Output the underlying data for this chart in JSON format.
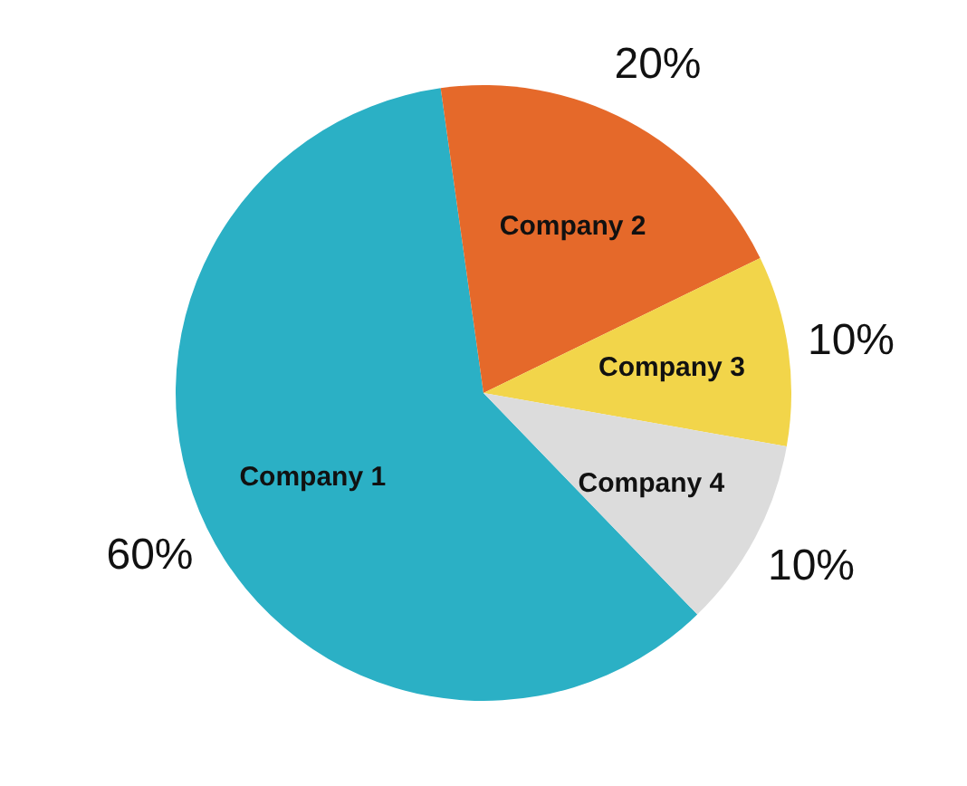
{
  "chart_data": {
    "type": "pie",
    "categories": [
      "Company 1",
      "Company 2",
      "Company 3",
      "Company 4"
    ],
    "values": [
      60,
      20,
      10,
      10
    ],
    "colors": [
      "#2bb0c5",
      "#e5692a",
      "#f2d54a",
      "#dcdcdc"
    ],
    "value_labels": [
      "60%",
      "20%",
      "10%",
      "10%"
    ],
    "legend": false
  }
}
